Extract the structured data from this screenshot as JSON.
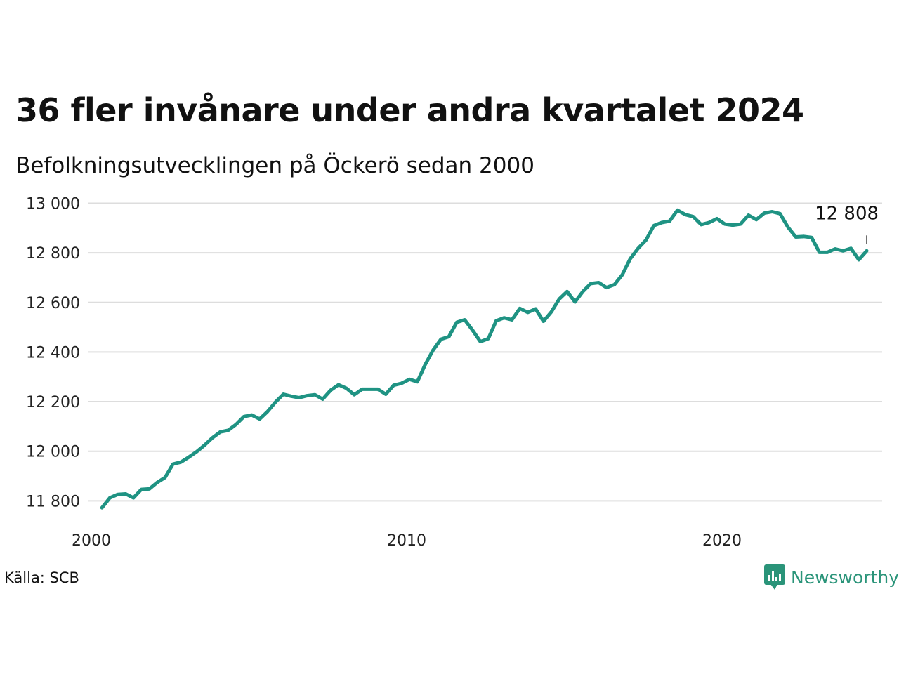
{
  "title": "36 fler invånare under andra kvartalet 2024",
  "subtitle": "Befolkningsutvecklingen på Öckerö sedan 2000",
  "source": "Källa: SCB",
  "brand": {
    "name": "Newsworthy",
    "icon": "newsworthy-logo-icon",
    "color": "#2a9479"
  },
  "colors": {
    "line": "#1f9383",
    "grid": "#dddddd"
  },
  "chart_data": {
    "type": "line",
    "title": "36 fler invånare under andra kvartalet 2024",
    "subtitle": "Befolkningsutvecklingen på Öckerö sedan 2000",
    "xlabel": "",
    "ylabel": "",
    "xlim": [
      2000,
      2025
    ],
    "ylim": [
      11700,
      13050
    ],
    "y_ticks": [
      11800,
      12000,
      12200,
      12400,
      12600,
      12800,
      13000
    ],
    "y_tick_labels": [
      "11 800",
      "12 000",
      "12 200",
      "12 400",
      "12 600",
      "12 800",
      "13 000"
    ],
    "x_ticks": [
      2000,
      2010,
      2020
    ],
    "x_tick_labels": [
      "2000",
      "2010",
      "2020"
    ],
    "grid": "horizontal",
    "end_label": "12 808",
    "series": [
      {
        "x": [
          2000.25,
          2000.5,
          2000.75,
          2001.0,
          2001.25,
          2001.5,
          2001.75,
          2002.0,
          2002.25,
          2002.5,
          2002.75,
          2003.0,
          2003.25,
          2003.5,
          2003.75,
          2004.0,
          2004.25,
          2004.5,
          2004.75,
          2005.0,
          2005.25,
          2005.5,
          2005.75,
          2006.0,
          2006.25,
          2006.5,
          2006.75,
          2007.0,
          2007.25,
          2007.5,
          2007.75,
          2008.0,
          2008.25,
          2008.5,
          2008.75,
          2009.0,
          2009.25,
          2009.5,
          2009.75,
          2010.0,
          2010.25,
          2010.5,
          2010.75,
          2011.0,
          2011.25,
          2011.5,
          2011.75,
          2012.0,
          2012.25,
          2012.5,
          2012.75,
          2013.0,
          2013.25,
          2013.5,
          2013.75,
          2014.0,
          2014.25,
          2014.5,
          2014.75,
          2015.0,
          2015.25,
          2015.5,
          2015.75,
          2016.0,
          2016.25,
          2016.5,
          2016.75,
          2017.0,
          2017.25,
          2017.5,
          2017.75,
          2018.0,
          2018.25,
          2018.5,
          2018.75,
          2019.0,
          2019.25,
          2019.5,
          2019.75,
          2020.0,
          2020.25,
          2020.5,
          2020.75,
          2021.0,
          2021.25,
          2021.5,
          2021.75,
          2022.0,
          2022.25,
          2022.5,
          2022.75,
          2023.0,
          2023.25,
          2023.5,
          2023.75,
          2024.0,
          2024.25,
          2024.5
        ],
        "values": [
          11772,
          11812,
          11826,
          11828,
          11812,
          11846,
          11848,
          11874,
          11894,
          11948,
          11956,
          11976,
          11998,
          12024,
          12054,
          12078,
          12084,
          12108,
          12140,
          12146,
          12130,
          12160,
          12198,
          12230,
          12222,
          12216,
          12224,
          12228,
          12210,
          12246,
          12268,
          12254,
          12228,
          12250,
          12250,
          12250,
          12230,
          12266,
          12274,
          12290,
          12280,
          12350,
          12408,
          12452,
          12462,
          12520,
          12530,
          12488,
          12442,
          12454,
          12526,
          12538,
          12530,
          12576,
          12560,
          12574,
          12524,
          12562,
          12614,
          12644,
          12602,
          12644,
          12676,
          12680,
          12660,
          12672,
          12712,
          12776,
          12818,
          12852,
          12910,
          12922,
          12928,
          12972,
          12954,
          12946,
          12914,
          12922,
          12938,
          12916,
          12912,
          12916,
          12952,
          12934,
          12960,
          12966,
          12958,
          12904,
          12864,
          12866,
          12862,
          12802,
          12802,
          12816,
          12808,
          12818,
          12772,
          12808
        ]
      }
    ]
  }
}
